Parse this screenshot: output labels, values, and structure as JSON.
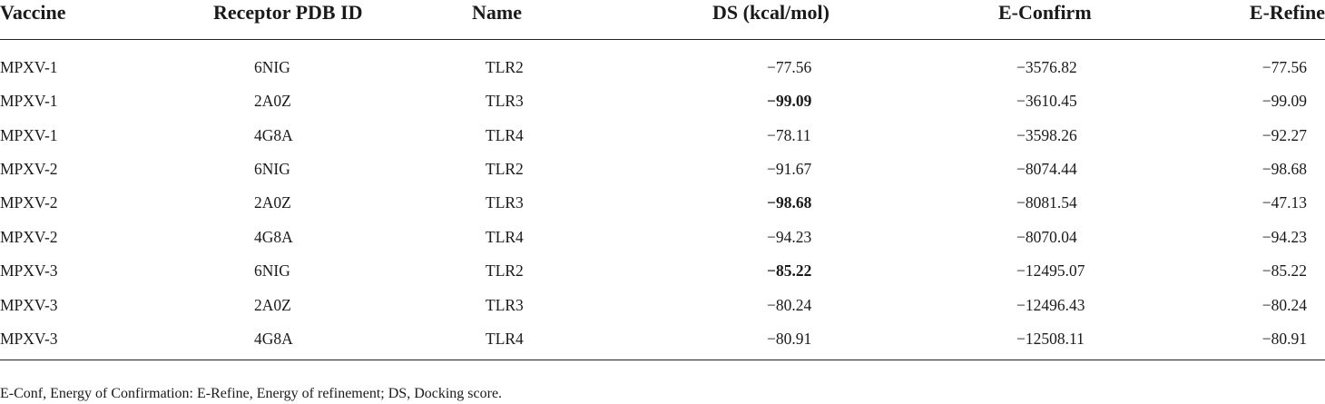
{
  "table": {
    "headers": [
      "Vaccine",
      "Receptor PDB ID",
      "Name",
      "DS (kcal/mol)",
      "E-Confirm",
      "E-Refine"
    ],
    "rows": [
      {
        "vaccine": "MPXV-1",
        "pdb": "6NIG",
        "name": "TLR2",
        "ds": "−77.56",
        "ds_bold": false,
        "econfirm": "−3576.82",
        "erefine": "−77.56"
      },
      {
        "vaccine": "MPXV-1",
        "pdb": "2A0Z",
        "name": "TLR3",
        "ds": "−99.09",
        "ds_bold": true,
        "econfirm": "−3610.45",
        "erefine": "−99.09"
      },
      {
        "vaccine": "MPXV-1",
        "pdb": "4G8A",
        "name": "TLR4",
        "ds": "−78.11",
        "ds_bold": false,
        "econfirm": "−3598.26",
        "erefine": "−92.27"
      },
      {
        "vaccine": "MPXV-2",
        "pdb": "6NIG",
        "name": "TLR2",
        "ds": "−91.67",
        "ds_bold": false,
        "econfirm": "−8074.44",
        "erefine": "−98.68"
      },
      {
        "vaccine": "MPXV-2",
        "pdb": "2A0Z",
        "name": "TLR3",
        "ds": "−98.68",
        "ds_bold": true,
        "econfirm": "−8081.54",
        "erefine": "−47.13"
      },
      {
        "vaccine": "MPXV-2",
        "pdb": "4G8A",
        "name": "TLR4",
        "ds": "−94.23",
        "ds_bold": false,
        "econfirm": "−8070.04",
        "erefine": "−94.23"
      },
      {
        "vaccine": "MPXV-3",
        "pdb": "6NIG",
        "name": "TLR2",
        "ds": "−85.22",
        "ds_bold": true,
        "econfirm": "−12495.07",
        "erefine": "−85.22"
      },
      {
        "vaccine": "MPXV-3",
        "pdb": "2A0Z",
        "name": "TLR3",
        "ds": "−80.24",
        "ds_bold": false,
        "econfirm": "−12496.43",
        "erefine": "−80.24"
      },
      {
        "vaccine": "MPXV-3",
        "pdb": "4G8A",
        "name": "TLR4",
        "ds": "−80.91",
        "ds_bold": false,
        "econfirm": "−12508.11",
        "erefine": "−80.91"
      }
    ]
  },
  "footnote": "E-Conf, Energy of Confirmation: E-Refine, Energy of refinement; DS, Docking score."
}
